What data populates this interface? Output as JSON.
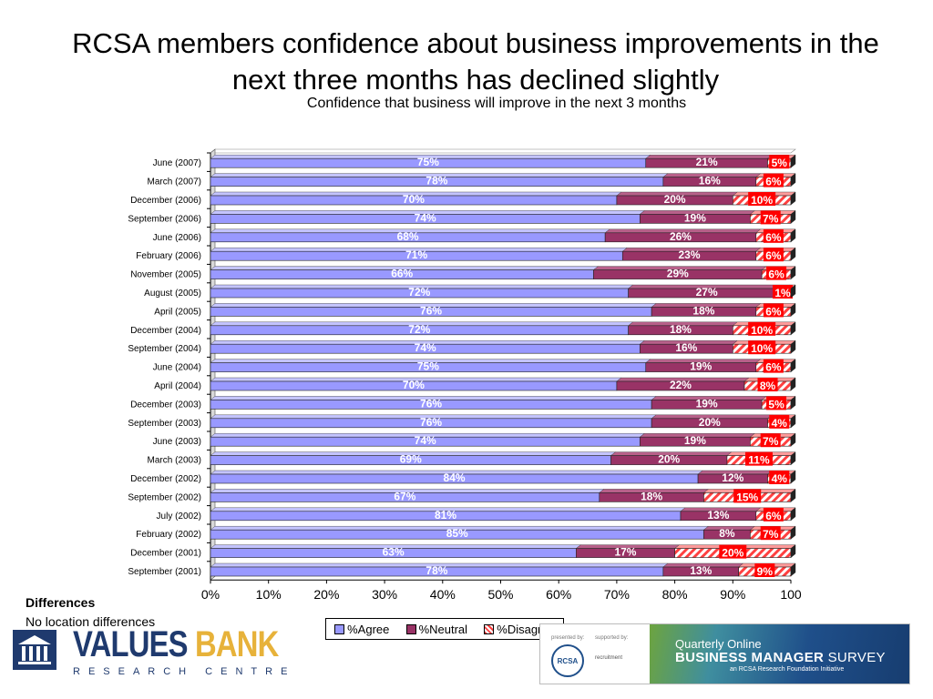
{
  "slide": {
    "title_line1": "RCSA members confidence about business improvements in the",
    "title_line2": "next three months has declined slightly",
    "differences_heading": "Differences",
    "differences_text": "No location differences"
  },
  "branding": {
    "values": "VALUES",
    "bank": "BANK",
    "research_centre": "RESEARCH CENTRE",
    "presented_by": "presented by:",
    "supported_by": "supported by:",
    "rcsa": "RCSA",
    "recruitment": "recruitment",
    "banner_line1": "Quarterly Online",
    "banner_line2a": "BUSINESS MANAGER",
    "banner_line2b": " SURVEY",
    "banner_line3": "an RCSA Research Foundation Initiative"
  },
  "chart_data": {
    "type": "bar",
    "orientation": "horizontal",
    "stacked": true,
    "title": "Confidence that business will improve in the next 3 months",
    "categories": [
      "June (2007)",
      "March (2007)",
      "December (2006)",
      "September (2006)",
      "June (2006)",
      "February (2006)",
      "November (2005)",
      "August (2005)",
      "April (2005)",
      "December (2004)",
      "September (2004)",
      "June (2004)",
      "April (2004)",
      "December (2003)",
      "September (2003)",
      "June (2003)",
      "March (2003)",
      "December (2002)",
      "September (2002)",
      "July (2002)",
      "February (2002)",
      "December (2001)",
      "September (2001)"
    ],
    "series": [
      {
        "name": "%Agree",
        "color": "#9999ff",
        "values": [
          75,
          78,
          70,
          74,
          68,
          71,
          66,
          72,
          76,
          72,
          74,
          75,
          70,
          76,
          76,
          74,
          69,
          84,
          67,
          81,
          85,
          63,
          78
        ]
      },
      {
        "name": "%Neutral",
        "color": "#993366",
        "values": [
          21,
          16,
          20,
          19,
          26,
          23,
          29,
          27,
          18,
          18,
          16,
          19,
          22,
          19,
          20,
          19,
          20,
          12,
          18,
          13,
          8,
          17,
          13
        ]
      },
      {
        "name": "%Disagree",
        "color": "#ff4040",
        "values": [
          5,
          6,
          10,
          7,
          6,
          6,
          6,
          1,
          6,
          10,
          10,
          6,
          8,
          5,
          4,
          7,
          11,
          4,
          15,
          6,
          7,
          20,
          9
        ]
      }
    ],
    "xlim": [
      0,
      100
    ],
    "x_ticks": [
      "0%",
      "10%",
      "20%",
      "30%",
      "40%",
      "50%",
      "60%",
      "70%",
      "80%",
      "90%",
      "100"
    ],
    "legend_position": "bottom"
  }
}
